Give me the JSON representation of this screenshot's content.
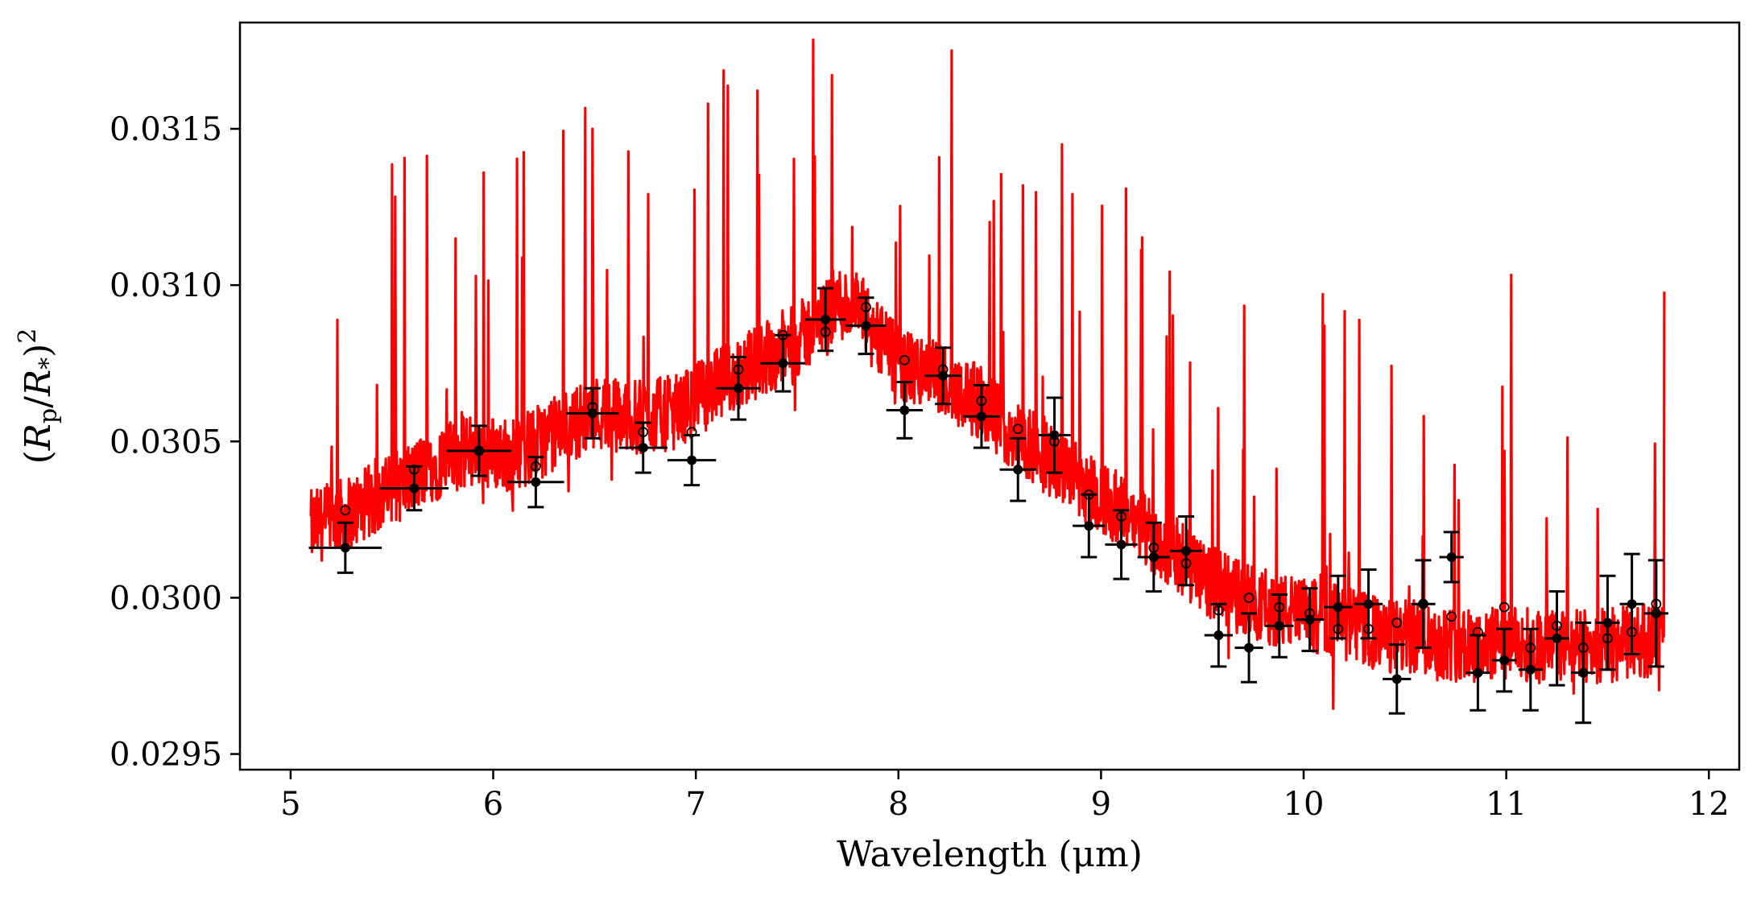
{
  "chart_data": {
    "type": "scatter",
    "xlabel": "Wavelength (μm)",
    "ylabel": "(R_p/R_*)^2",
    "xlim": [
      4.75,
      12.15
    ],
    "ylim": [
      0.02945,
      0.03184
    ],
    "xticks": [
      5,
      6,
      7,
      8,
      9,
      10,
      11,
      12
    ],
    "xtick_labels": [
      "5",
      "6",
      "7",
      "8",
      "9",
      "10",
      "11",
      "12"
    ],
    "yticks": [
      0.0295,
      0.03,
      0.0305,
      0.031,
      0.0315
    ],
    "ytick_labels": [
      "0.0295",
      "0.0300",
      "0.0305",
      "0.0310",
      "0.0315"
    ],
    "grid": false,
    "legend": "none",
    "colors": {
      "model": "#ff0000",
      "data": "#000000"
    },
    "model": {
      "x": [
        5.1,
        5.3,
        5.5,
        5.7,
        5.9,
        6.1,
        6.3,
        6.5,
        6.7,
        6.9,
        7.1,
        7.3,
        7.5,
        7.6,
        7.7,
        7.8,
        8.0,
        8.2,
        8.4,
        8.6,
        8.8,
        9.0,
        9.2,
        9.4,
        9.6,
        9.8,
        10.0,
        10.2,
        10.4,
        10.6,
        10.8,
        11.0,
        11.2,
        11.4,
        11.6,
        11.78
      ],
      "y": [
        0.0302,
        0.03025,
        0.03032,
        0.0304,
        0.03045,
        0.03043,
        0.0305,
        0.03057,
        0.03055,
        0.03057,
        0.03065,
        0.03073,
        0.0308,
        0.03085,
        0.03092,
        0.0309,
        0.03072,
        0.03068,
        0.0306,
        0.03048,
        0.0304,
        0.0303,
        0.0302,
        0.0301,
        0.03,
        0.02995,
        0.02992,
        0.0299,
        0.02985,
        0.02985,
        0.02982,
        0.02983,
        0.02982,
        0.02982,
        0.02983,
        0.02985
      ]
    },
    "data": {
      "x": [
        5.27,
        5.61,
        5.93,
        6.21,
        6.49,
        6.74,
        6.98,
        7.21,
        7.43,
        7.64,
        7.84,
        8.03,
        8.22,
        8.41,
        8.59,
        8.77,
        8.94,
        9.1,
        9.26,
        9.42,
        9.58,
        9.73,
        9.88,
        10.03,
        10.17,
        10.32,
        10.46,
        10.59,
        10.73,
        10.86,
        10.99,
        11.12,
        11.25,
        11.38,
        11.5,
        11.62,
        11.74
      ],
      "xerr": [
        0.18,
        0.17,
        0.16,
        0.14,
        0.13,
        0.12,
        0.12,
        0.11,
        0.11,
        0.1,
        0.1,
        0.09,
        0.09,
        0.09,
        0.09,
        0.08,
        0.08,
        0.08,
        0.08,
        0.08,
        0.07,
        0.07,
        0.07,
        0.07,
        0.07,
        0.07,
        0.07,
        0.06,
        0.06,
        0.06,
        0.06,
        0.06,
        0.06,
        0.06,
        0.06,
        0.06,
        0.06
      ],
      "y": [
        0.03016,
        0.03035,
        0.03047,
        0.03037,
        0.03059,
        0.03048,
        0.03044,
        0.03067,
        0.03075,
        0.03089,
        0.03087,
        0.0306,
        0.03071,
        0.03058,
        0.03041,
        0.03052,
        0.03023,
        0.03017,
        0.03013,
        0.03015,
        0.02988,
        0.02984,
        0.02991,
        0.02993,
        0.02997,
        0.02998,
        0.02974,
        0.02998,
        0.03013,
        0.02976,
        0.0298,
        0.02977,
        0.02987,
        0.02976,
        0.02992,
        0.02998,
        0.02995
      ],
      "yerr": [
        8e-05,
        7e-05,
        8e-05,
        8e-05,
        8e-05,
        8e-05,
        8e-05,
        0.0001,
        9e-05,
        0.0001,
        9e-05,
        9e-05,
        9e-05,
        0.0001,
        0.0001,
        0.00012,
        0.0001,
        0.00011,
        0.00011,
        0.00011,
        0.0001,
        0.00011,
        0.0001,
        0.0001,
        0.0001,
        0.00011,
        0.00011,
        0.00014,
        8e-05,
        0.00012,
        0.0001,
        0.00013,
        0.00015,
        0.00016,
        0.00015,
        0.00016,
        0.00017
      ]
    },
    "binned_model": {
      "x": [
        5.27,
        5.61,
        5.93,
        6.21,
        6.49,
        6.74,
        6.98,
        7.21,
        7.43,
        7.64,
        7.84,
        8.03,
        8.22,
        8.41,
        8.59,
        8.77,
        8.94,
        9.1,
        9.26,
        9.42,
        9.58,
        9.73,
        9.88,
        10.03,
        10.17,
        10.32,
        10.46,
        10.59,
        10.73,
        10.86,
        10.99,
        11.12,
        11.25,
        11.38,
        11.5,
        11.62,
        11.74
      ],
      "y": [
        0.03028,
        0.03041,
        0.03047,
        0.03042,
        0.03061,
        0.03053,
        0.03053,
        0.03073,
        0.03084,
        0.03085,
        0.03093,
        0.03076,
        0.03073,
        0.03063,
        0.03054,
        0.0305,
        0.03033,
        0.03026,
        0.03016,
        0.03011,
        0.02996,
        0.03,
        0.02997,
        0.02995,
        0.0299,
        0.0299,
        0.02992,
        0.02998,
        0.02994,
        0.02989,
        0.02997,
        0.02984,
        0.02991,
        0.02984,
        0.02987,
        0.02989,
        0.02998
      ]
    }
  }
}
